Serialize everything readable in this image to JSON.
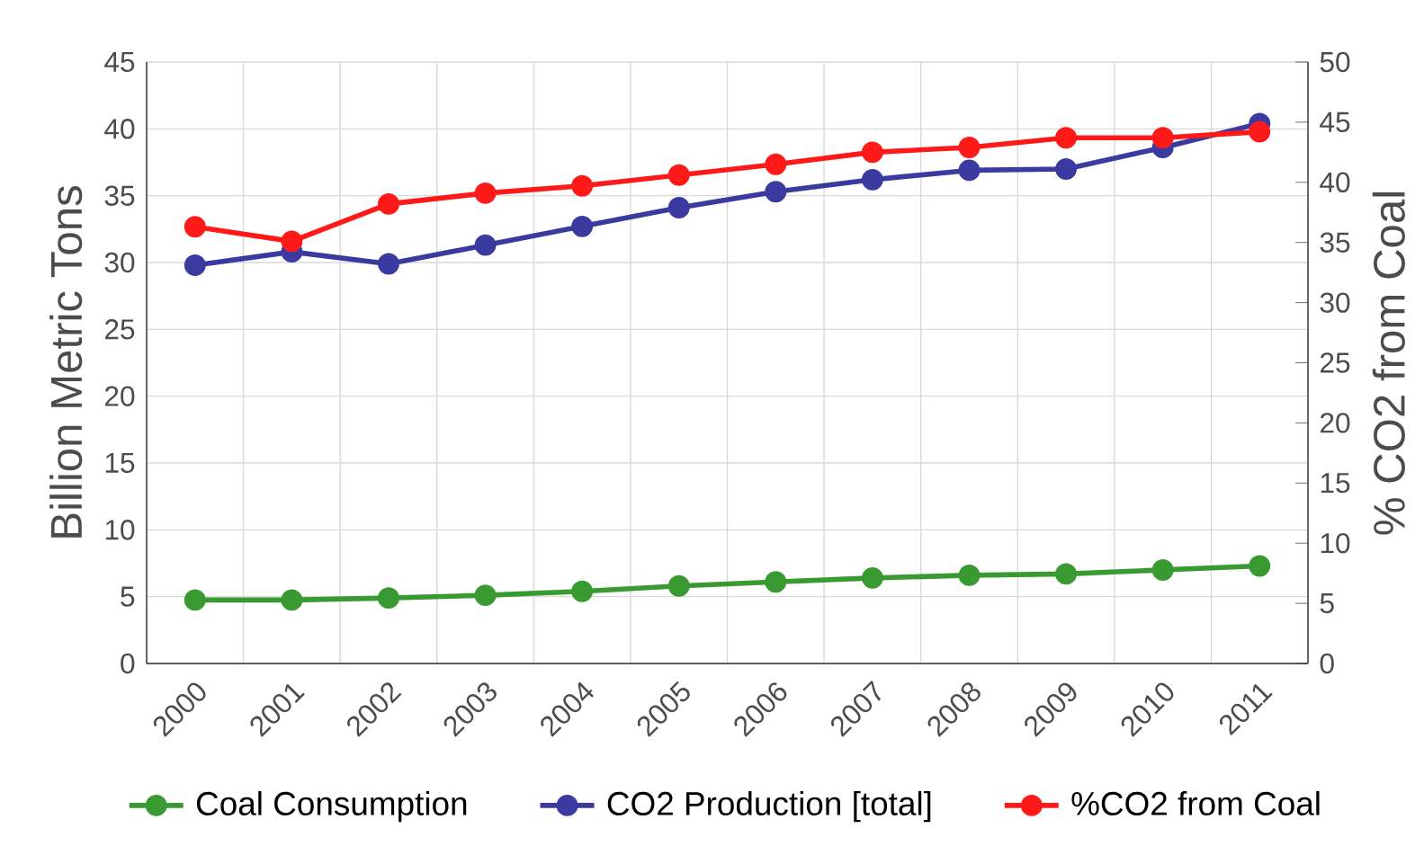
{
  "chart_data": {
    "type": "line",
    "ylabel": "Billion Metric Tons",
    "y2label": "% CO2 from Coal",
    "categories": [
      "2000",
      "2001",
      "2002",
      "2003",
      "2004",
      "2005",
      "2006",
      "2007",
      "2008",
      "2009",
      "2010",
      "2011"
    ],
    "series": [
      {
        "name": "Coal Consumption",
        "color": "#3a9a32",
        "values": [
          4.75,
          4.75,
          4.9,
          5.1,
          5.4,
          5.8,
          6.1,
          6.4,
          6.6,
          6.7,
          7.0,
          7.3
        ]
      },
      {
        "name": "CO2 Production [total]",
        "color": "#3a3aa0",
        "values": [
          29.8,
          30.8,
          29.9,
          31.3,
          32.7,
          34.1,
          35.3,
          36.2,
          36.9,
          37.0,
          38.6,
          40.4
        ]
      },
      {
        "name": "%CO2 from Coal",
        "color": "#ff1a1a",
        "axis": "y2",
        "values": [
          36.3,
          35.1,
          38.2,
          39.1,
          39.7,
          40.6,
          41.5,
          42.5,
          42.9,
          43.7,
          43.7,
          44.2
        ]
      }
    ],
    "ylim": [
      0,
      45
    ],
    "yticks": [
      0,
      5,
      10,
      15,
      20,
      25,
      30,
      35,
      40,
      45
    ],
    "y2lim": [
      0,
      50
    ],
    "y2ticks": [
      0,
      5,
      10,
      15,
      20,
      25,
      30,
      35,
      40,
      45,
      50
    ],
    "grid": true,
    "legend": "bottom",
    "marker": "circle",
    "line_style": "solid"
  }
}
